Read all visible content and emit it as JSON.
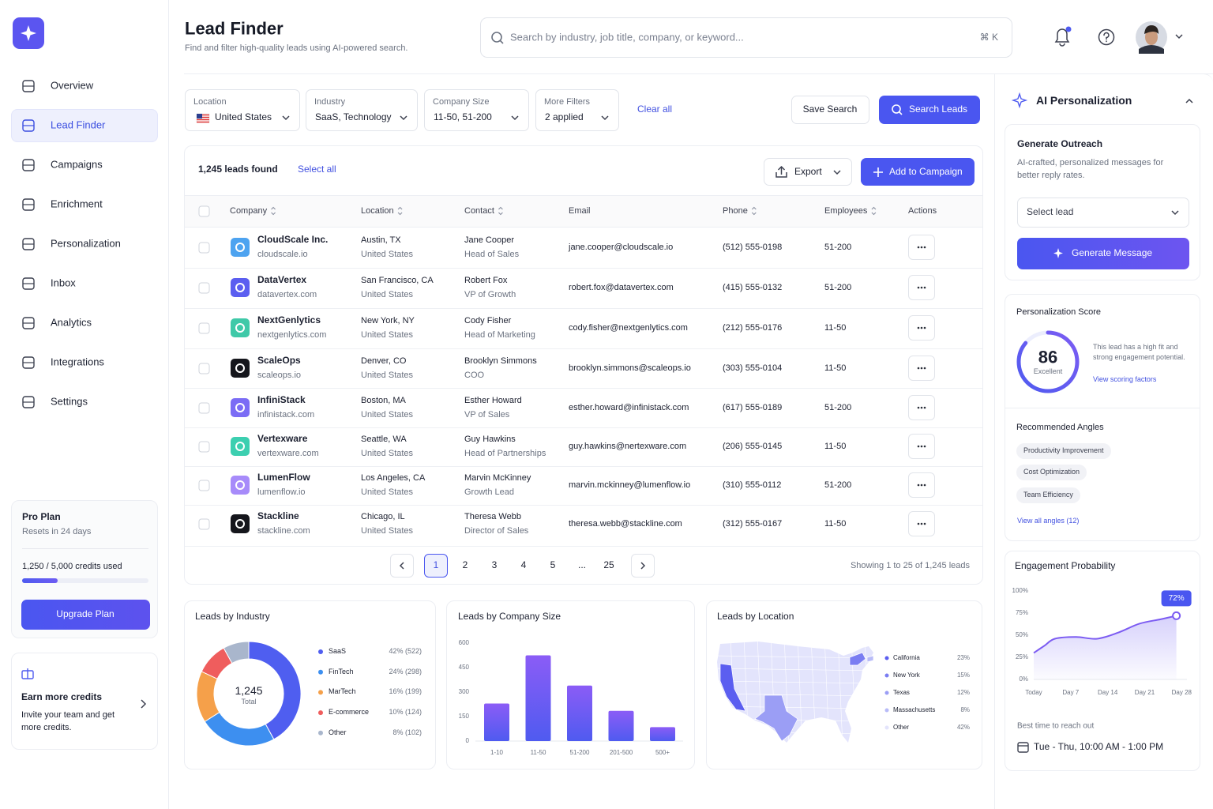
{
  "sidebar": {
    "nav": [
      {
        "label": "Overview"
      },
      {
        "label": "Lead Finder",
        "active": true
      },
      {
        "label": "Campaigns"
      },
      {
        "label": "Enrichment"
      },
      {
        "label": "Personalization"
      },
      {
        "label": "Inbox"
      },
      {
        "label": "Analytics"
      },
      {
        "label": "Integrations"
      },
      {
        "label": "Settings"
      }
    ],
    "plan": {
      "title": "Pro Plan",
      "subtitle": "Resets in 24 days",
      "usage": "1,250 / 5,000 credits used",
      "button": "Upgrade Plan"
    },
    "promo": {
      "title": "Earn more credits",
      "text": "Invite your team and get more credits."
    }
  },
  "header": {
    "title": "Lead Finder",
    "subtitle": "Find and filter high-quality leads using AI-powered search.",
    "search_placeholder": "Search by industry, job title, company, or keyword...",
    "shortcut": "⌘ K"
  },
  "filters": {
    "items": [
      {
        "label": "Location",
        "value": "United States"
      },
      {
        "label": "Industry",
        "value": "SaaS, Technology"
      },
      {
        "label": "Company Size",
        "value": "11-50, 51-200"
      },
      {
        "label": "More Filters",
        "value": "2 applied"
      }
    ],
    "clear": "Clear all",
    "save": "Save Search",
    "search": "Search Leads"
  },
  "results": {
    "count": "1,245 leads found",
    "select_all": "Select all",
    "export": "Export",
    "add": "Add to Campaign"
  },
  "table": {
    "columns": [
      {
        "label": "Company",
        "sortable": true
      },
      {
        "label": "Location",
        "sortable": true
      },
      {
        "label": "Contact",
        "sortable": true
      },
      {
        "label": "Email",
        "sortable": false
      },
      {
        "label": "Phone",
        "sortable": true
      },
      {
        "label": "Employees",
        "sortable": true
      },
      {
        "label": "Actions",
        "sortable": false
      }
    ],
    "rows": [
      {
        "company": "CloudScale Inc.",
        "domain": "cloudscale.io",
        "city": "Austin, TX",
        "country": "United States",
        "contact": "Jane Cooper",
        "role": "Head of Sales",
        "email": "jane.cooper@cloudscale.io",
        "phone": "(512) 555-0198",
        "employees": "51-200",
        "color": "#4da3f0"
      },
      {
        "company": "DataVertex",
        "domain": "datavertex.com",
        "city": "San Francisco, CA",
        "country": "United States",
        "contact": "Robert Fox",
        "role": "VP of Growth",
        "email": "robert.fox@datavertex.com",
        "phone": "(415) 555-0132",
        "employees": "51-200",
        "color": "#5b5ef0"
      },
      {
        "company": "NextGenlytics",
        "domain": "nextgenlytics.com",
        "city": "New York, NY",
        "country": "United States",
        "contact": "Cody Fisher",
        "role": "Head of Marketing",
        "email": "cody.fisher@nextgenlytics.com",
        "phone": "(212) 555-0176",
        "employees": "11-50",
        "color": "#3fc9a8"
      },
      {
        "company": "ScaleOps",
        "domain": "scaleops.io",
        "city": "Denver, CO",
        "country": "United States",
        "contact": "Brooklyn Simmons",
        "role": "COO",
        "email": "brooklyn.simmons@scaleops.io",
        "phone": "(303) 555-0104",
        "employees": "11-50",
        "color": "#15161c"
      },
      {
        "company": "InfiniStack",
        "domain": "infinistack.com",
        "city": "Boston, MA",
        "country": "United States",
        "contact": "Esther Howard",
        "role": "VP of Sales",
        "email": "esther.howard@infinistack.com",
        "phone": "(617) 555-0189",
        "employees": "51-200",
        "color": "#7b6cf5"
      },
      {
        "company": "Vertexware",
        "domain": "vertexware.com",
        "city": "Seattle, WA",
        "country": "United States",
        "contact": "Guy Hawkins",
        "role": "Head of Partnerships",
        "email": "guy.hawkins@nertexware.com",
        "phone": "(206) 555-0145",
        "employees": "11-50",
        "color": "#3ccfb0"
      },
      {
        "company": "LumenFlow",
        "domain": "lumenflow.io",
        "city": "Los Angeles, CA",
        "country": "United States",
        "contact": "Marvin McKinney",
        "role": "Growth Lead",
        "email": "marvin.mckinney@lumenflow.io",
        "phone": "(310) 555-0112",
        "employees": "51-200",
        "color": "#a78bfa"
      },
      {
        "company": "Stackline",
        "domain": "stackline.com",
        "city": "Chicago, IL",
        "country": "United States",
        "contact": "Theresa Webb",
        "role": "Director of Sales",
        "email": "theresa.webb@stackline.com",
        "phone": "(312) 555-0167",
        "employees": "11-50",
        "color": "#15161c"
      }
    ]
  },
  "pagination": {
    "pages": [
      "1",
      "2",
      "3",
      "4",
      "5",
      "...",
      "25"
    ],
    "summary": "Showing 1 to 25 of 1,245 leads"
  },
  "chart_data": [
    {
      "type": "pie",
      "title": "Leads by Industry",
      "total_label": "1,245",
      "total_sublabel": "Total",
      "categories": [
        "SaaS",
        "FinTech",
        "MarTech",
        "E-commerce",
        "Other"
      ],
      "values": [
        42,
        24,
        16,
        10,
        8
      ],
      "value_labels": [
        "42% (522)",
        "24% (298)",
        "16% (199)",
        "10% (124)",
        "8% (102)"
      ],
      "colors": [
        "#4f5ef0",
        "#3d8ff0",
        "#f5a04a",
        "#ef5d5d",
        "#a9b6cc"
      ]
    },
    {
      "type": "bar",
      "title": "Leads by Company Size",
      "categories": [
        "1-10",
        "11-50",
        "51-200",
        "201-500",
        "500+"
      ],
      "values": [
        230,
        525,
        340,
        185,
        85
      ],
      "ylim": [
        0,
        600
      ],
      "yticks": [
        0,
        150,
        300,
        450,
        600
      ],
      "color": "#6d5cf2"
    },
    {
      "type": "map",
      "title": "Leads by Location",
      "categories": [
        "California",
        "New York",
        "Texas",
        "Massachusetts",
        "Other"
      ],
      "values": [
        23,
        15,
        12,
        8,
        42
      ],
      "value_labels": [
        "23%",
        "15%",
        "12%",
        "8%",
        "42%"
      ],
      "colors": [
        "#5b5ef0",
        "#7a7df2",
        "#9b9ef5",
        "#b8bbf8",
        "#e3e4fc"
      ]
    },
    {
      "type": "line",
      "title": "Engagement Probability",
      "x": [
        0,
        2,
        4,
        8,
        12,
        16,
        20,
        24,
        27
      ],
      "values": [
        30,
        38,
        46,
        48,
        46,
        53,
        63,
        68,
        72
      ],
      "value_labels": [
        null,
        null,
        null,
        null,
        null,
        null,
        null,
        null,
        "72%"
      ],
      "xlim": [
        0,
        29
      ],
      "xticks": [
        {
          "value": 0,
          "label": "Today"
        },
        {
          "value": 7,
          "label": "Day 7"
        },
        {
          "value": 14,
          "label": "Day 14"
        },
        {
          "value": 21,
          "label": "Day 21"
        },
        {
          "value": 28,
          "label": "Day 28"
        }
      ],
      "ylim": [
        0,
        100
      ],
      "yticks": [
        {
          "value": 0,
          "label": "0%"
        },
        {
          "value": 25,
          "label": "25%"
        },
        {
          "value": 50,
          "label": "50%"
        },
        {
          "value": 75,
          "label": "75%"
        },
        {
          "value": 100,
          "label": "100%"
        }
      ],
      "color": "#7c5cf2"
    }
  ],
  "panel": {
    "title": "AI Personalization",
    "outreach": {
      "title": "Generate Outreach",
      "text": "AI-crafted, personalized messages for better reply rates.",
      "select": "Select lead",
      "button": "Generate Message"
    },
    "score": {
      "title": "Personalization Score",
      "value": 86,
      "rating": "Excellent",
      "text": "This lead has a high fit and strong engagement potential.",
      "link": "View scoring factors"
    },
    "angles": {
      "title": "Recommended Angles",
      "tags": [
        "Productivity Improvement",
        "Cost Optimization",
        "Team Efficiency"
      ],
      "link": "View all angles (12)"
    },
    "timing": {
      "title": "Best time to reach out",
      "value": "Tue - Thu, 10:00 AM - 1:00 PM"
    }
  }
}
